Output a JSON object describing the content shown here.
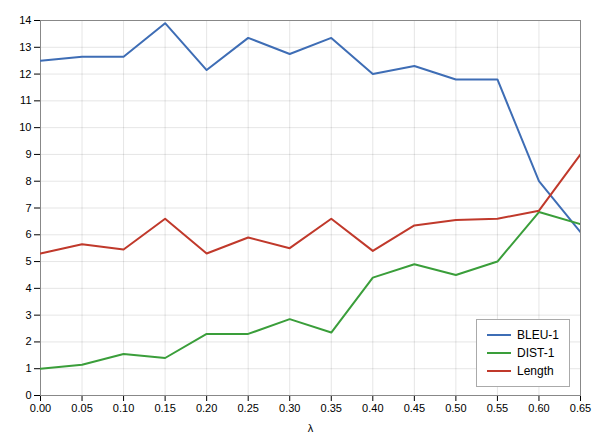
{
  "chart_data": {
    "type": "line",
    "xlabel": "λ",
    "x": [
      0.0,
      0.05,
      0.1,
      0.15,
      0.2,
      0.25,
      0.3,
      0.35,
      0.4,
      0.45,
      0.5,
      0.55,
      0.6,
      0.65
    ],
    "series": [
      {
        "name": "BLEU-1",
        "color": "#3E6DB5",
        "values": [
          12.5,
          12.65,
          12.65,
          13.9,
          12.15,
          13.35,
          12.75,
          13.35,
          12.0,
          12.3,
          11.8,
          11.8,
          8.0,
          6.1
        ]
      },
      {
        "name": "DIST-1",
        "color": "#3A9E3A",
        "values": [
          1.0,
          1.15,
          1.55,
          1.4,
          2.3,
          2.3,
          2.85,
          2.35,
          4.4,
          4.9,
          4.5,
          5.0,
          6.85,
          6.4
        ]
      },
      {
        "name": "Length",
        "color": "#C0392B",
        "values": [
          5.3,
          5.65,
          5.45,
          6.6,
          5.3,
          5.9,
          5.5,
          6.6,
          5.4,
          6.35,
          6.55,
          6.6,
          6.9,
          9.0
        ]
      }
    ],
    "xlim": [
      0.0,
      0.65
    ],
    "xticks": [
      {
        "value": 0.0,
        "label": "0.00"
      },
      0.05,
      {
        "value": 0.1,
        "label": "0.10"
      },
      0.15,
      {
        "value": 0.2,
        "label": "0.20"
      },
      0.25,
      {
        "value": 0.3,
        "label": "0.30"
      },
      0.35,
      {
        "value": 0.4,
        "label": "0.40"
      },
      0.45,
      {
        "value": 0.5,
        "label": "0.50"
      },
      0.55,
      {
        "value": 0.6,
        "label": "0.60"
      },
      0.65
    ],
    "ylim": [
      0,
      14
    ],
    "yticks": [
      0,
      1,
      2,
      3,
      4,
      5,
      6,
      7,
      8,
      9,
      10,
      11,
      12,
      13,
      14
    ],
    "grid": true,
    "legend": "lower right"
  }
}
